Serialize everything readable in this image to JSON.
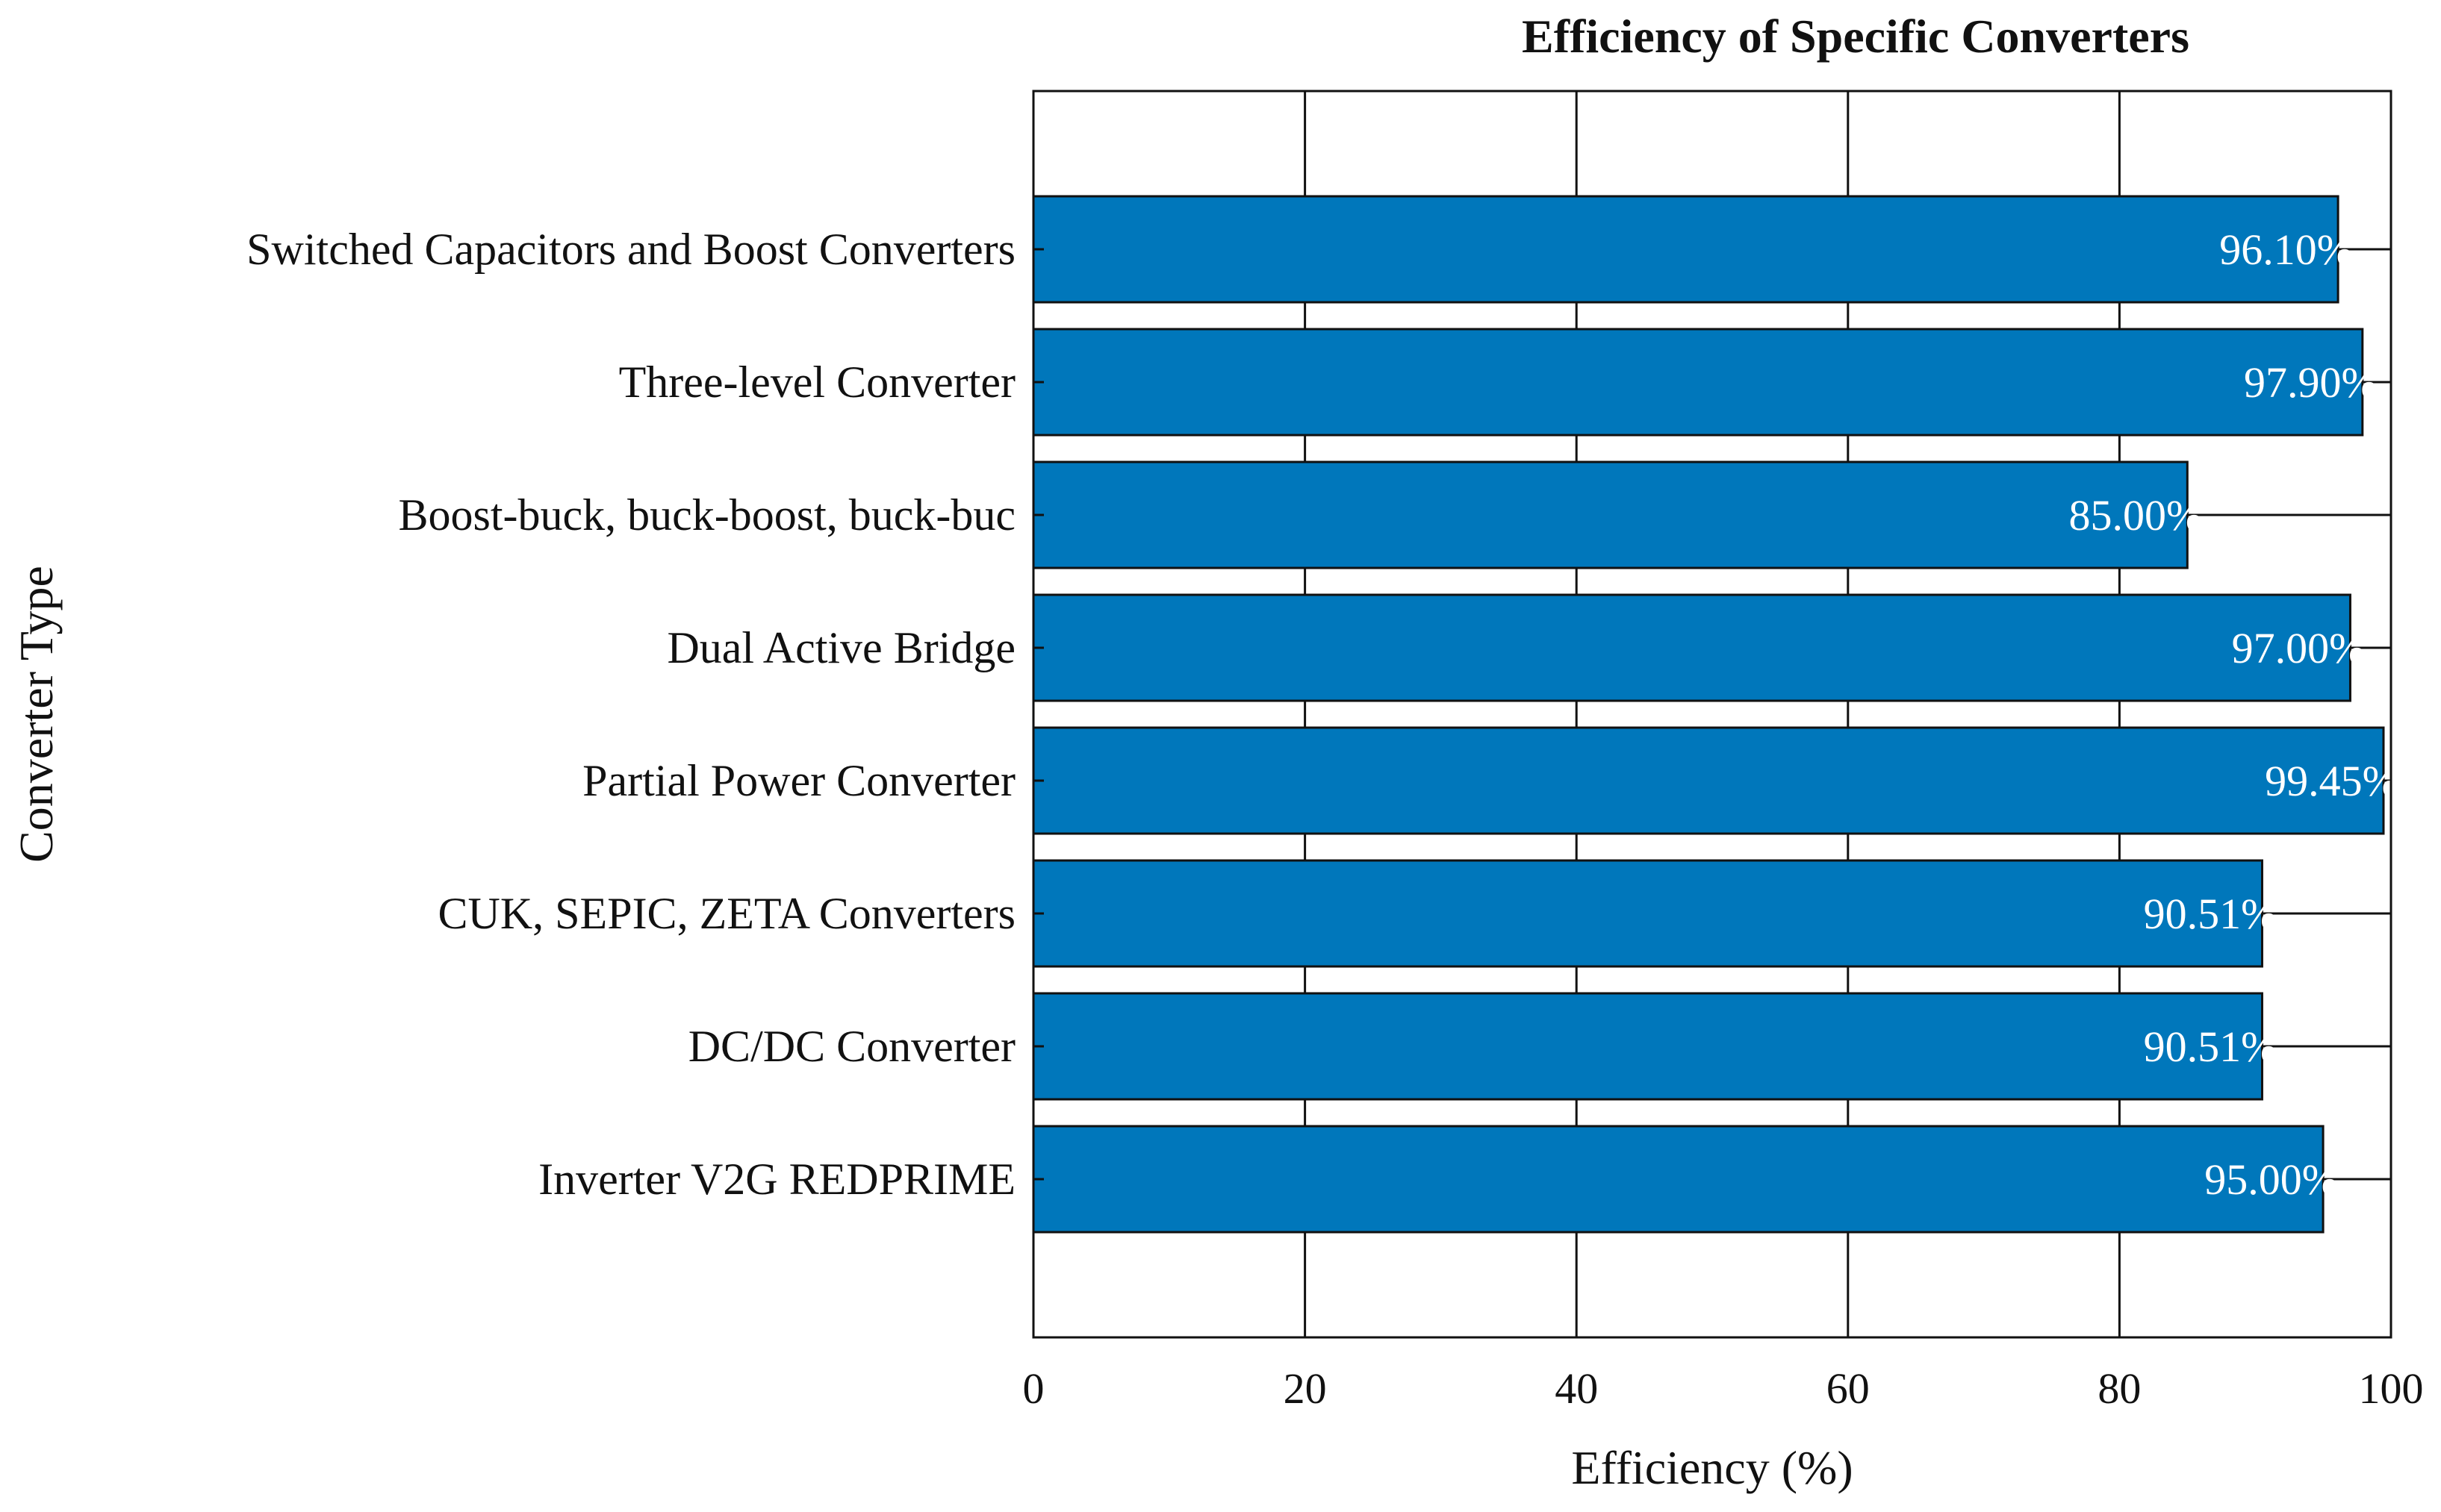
{
  "chart_data": {
    "type": "bar",
    "orientation": "horizontal",
    "title": "Efficiency of Specific Converters",
    "xlabel": "Efficiency (%)",
    "ylabel": "Converter Type",
    "xlim": [
      0,
      100
    ],
    "xticks": [
      0,
      20,
      40,
      60,
      80,
      100
    ],
    "grid": true,
    "bar_color": "#0077BB",
    "categories": [
      "Switched Capacitors and Boost Converters",
      "Three-level Converter",
      "Boost-buck, buck-boost, buck-buc",
      "Dual Active Bridge",
      "Partial Power Converter",
      "CUK, SEPIC, ZETA Converters",
      "DC/DC Converter",
      "Inverter V2G REDPRIME"
    ],
    "values": [
      96.1,
      97.9,
      85.0,
      97.0,
      99.45,
      90.51,
      90.51,
      95.0
    ],
    "data_labels": [
      "96.10%",
      "97.90%",
      "85.00%",
      "97.00%",
      "99.45%",
      "90.51%",
      "90.51%",
      "95.00%"
    ]
  }
}
